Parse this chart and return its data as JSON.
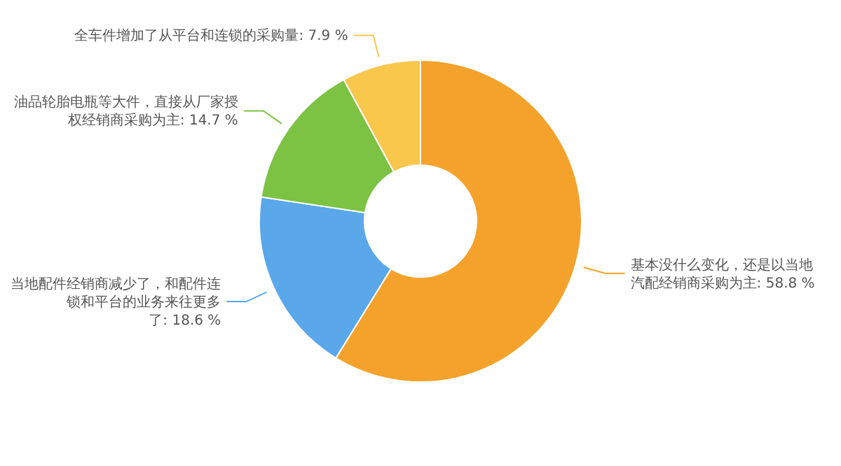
{
  "chart_data": {
    "type": "donut",
    "categories": [
      "基本没什么变化，还是以当地汽配经销商采购为主",
      "当地配件经销商减少了，和配件连锁和平台的业务来往更多了",
      "油品轮胎电瓶等大件，直接从厂家授权经销商采购为主",
      "全车件增加了从平台和连锁的采购量"
    ],
    "values": [
      58.8,
      18.6,
      14.7,
      7.9
    ],
    "value_labels": [
      "58.8 %",
      "18.6 %",
      "14.7 %",
      "7.9 %"
    ],
    "colors": [
      "#f4a22c",
      "#5aa7ea",
      "#7cc243",
      "#f8c74c"
    ]
  }
}
